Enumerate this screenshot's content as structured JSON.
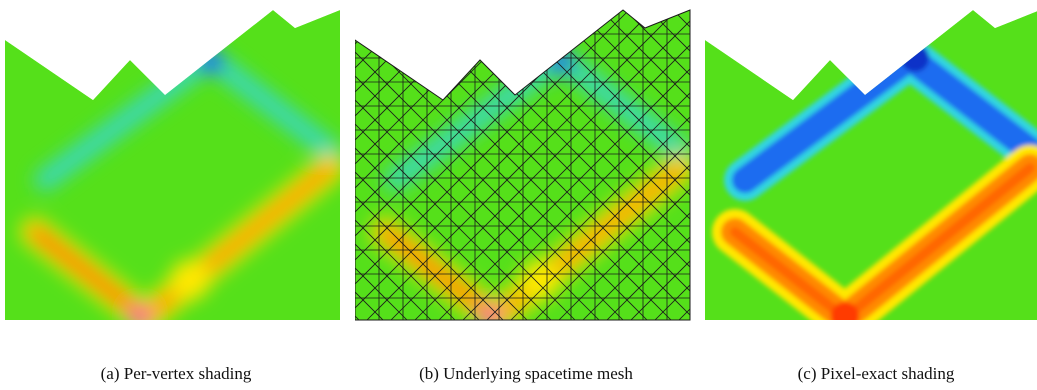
{
  "figure": {
    "panels": [
      {
        "id": "a",
        "caption": "(a) Per-vertex shading",
        "style": "smooth",
        "mesh": false
      },
      {
        "id": "b",
        "caption": "(b) Underlying spacetime mesh",
        "style": "smooth",
        "mesh": true
      },
      {
        "id": "c",
        "caption": "(c) Pixel-exact shading",
        "style": "banded",
        "mesh": false
      }
    ],
    "colors": {
      "background_field": "#55e01a",
      "cold_band": "#1e6cf0",
      "cold_edge": "#33d6e0",
      "hot_band": "#ff8a00",
      "hot_core": "#ff3a00",
      "warm_glow": "#ffe800",
      "peak": "#ff1aa0",
      "mesh_line": "#1a1a1a"
    }
  }
}
